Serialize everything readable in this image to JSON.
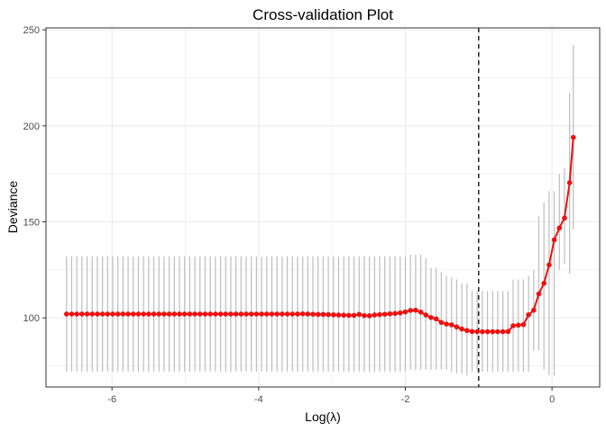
{
  "chart_data": {
    "type": "line",
    "title": "Cross-validation Plot",
    "xlabel": "Log(λ)",
    "ylabel": "Deviance",
    "xlim": [
      -6.9,
      0.65
    ],
    "ylim": [
      64,
      251
    ],
    "x_ticks": [
      -6,
      -4,
      -2,
      0
    ],
    "y_ticks": [
      100,
      150,
      200,
      250
    ],
    "grid": true,
    "legend": "none",
    "colors": {
      "line": "#ee1111",
      "point": "#ee1111",
      "errorbar": "#bdbdbd",
      "vline": "#000000",
      "grid": "#ebebeb",
      "panel_border": "#333333"
    },
    "vline_x": -1.0,
    "series": [
      {
        "x": [
          -6.62,
          -6.55,
          -6.48,
          -6.41,
          -6.34,
          -6.27,
          -6.2,
          -6.13,
          -6.06,
          -5.99,
          -5.92,
          -5.85,
          -5.78,
          -5.71,
          -5.64,
          -5.57,
          -5.5,
          -5.43,
          -5.36,
          -5.29,
          -5.22,
          -5.15,
          -5.08,
          -5.01,
          -4.94,
          -4.87,
          -4.8,
          -4.73,
          -4.66,
          -4.59,
          -4.52,
          -4.45,
          -4.38,
          -4.31,
          -4.24,
          -4.17,
          -4.1,
          -4.03,
          -3.96,
          -3.89,
          -3.82,
          -3.75,
          -3.68,
          -3.61,
          -3.54,
          -3.47,
          -3.4,
          -3.33,
          -3.26,
          -3.19,
          -3.12,
          -3.05,
          -2.98,
          -2.91,
          -2.84,
          -2.77,
          -2.7,
          -2.63,
          -2.56,
          -2.49,
          -2.42,
          -2.35,
          -2.28,
          -2.21,
          -2.14,
          -2.07,
          -2.0,
          -1.93,
          -1.86,
          -1.79,
          -1.72,
          -1.65,
          -1.58,
          -1.51,
          -1.44,
          -1.37,
          -1.3,
          -1.23,
          -1.16,
          -1.09,
          -1.02,
          -0.95,
          -0.88,
          -0.81,
          -0.74,
          -0.67,
          -0.6,
          -0.53,
          -0.46,
          -0.39,
          -0.32,
          -0.25,
          -0.18,
          -0.11,
          -0.04,
          0.03,
          0.1,
          0.17,
          0.24,
          0.29
        ],
        "y": [
          102,
          102,
          102,
          102,
          102,
          102,
          102,
          102,
          102,
          102,
          102,
          102,
          102,
          102,
          102,
          102,
          102,
          102,
          102,
          102,
          102,
          102,
          102,
          102,
          102,
          102,
          102,
          102,
          102,
          102,
          102,
          102,
          102,
          102,
          102,
          102,
          102,
          102,
          102,
          102,
          102,
          102,
          102,
          102,
          102,
          102,
          102.1,
          102,
          101.9,
          101.8,
          101.8,
          101.7,
          101.6,
          101.5,
          101.4,
          101.3,
          101.3,
          101.8,
          101.2,
          101.1,
          101.5,
          101.7,
          101.9,
          102.1,
          102.3,
          102.6,
          103.1,
          103.9,
          104.0,
          103.0,
          101.5,
          100.2,
          99.5,
          97.6,
          96.8,
          96.4,
          95.3,
          94.2,
          93.4,
          92.9,
          92.8,
          92.8,
          92.8,
          92.8,
          92.8,
          92.8,
          92.9,
          95.9,
          96.2,
          96.5,
          101.6,
          104.0,
          112.5,
          118.0,
          127.6,
          140.6,
          146.8,
          152.0,
          170.4,
          194.0
        ],
        "ci_lower": [
          72,
          72,
          72,
          72,
          72,
          72,
          72,
          72,
          72,
          72,
          72,
          72,
          72,
          72,
          72,
          72,
          72,
          72,
          72,
          72,
          72,
          72,
          72,
          72,
          72,
          72,
          72,
          72,
          72,
          72,
          72,
          72,
          72,
          72,
          72,
          72,
          72,
          72,
          72,
          72,
          72,
          72,
          72,
          72,
          72,
          72,
          72,
          72,
          72,
          72,
          72,
          72,
          72,
          72,
          72,
          72,
          72,
          72,
          72,
          72,
          72,
          72,
          72,
          72,
          72,
          72,
          72,
          73,
          73,
          73,
          73,
          73,
          73,
          73,
          73,
          72,
          71,
          71,
          70,
          72,
          72,
          72,
          72,
          72,
          72,
          72,
          72,
          72,
          72,
          72,
          72,
          83,
          83,
          73,
          70,
          70,
          125,
          128,
          123,
          146
        ],
        "ci_upper": [
          132,
          132,
          132,
          132,
          132,
          132,
          132,
          132,
          132,
          132,
          132,
          132,
          132,
          132,
          132,
          132,
          132,
          132,
          132,
          132,
          132,
          132,
          132,
          132,
          132,
          132,
          132,
          132,
          132,
          132,
          132,
          132,
          132,
          132,
          132,
          132,
          132,
          132,
          132,
          132,
          132,
          132,
          132,
          132,
          132,
          132,
          132,
          132,
          132,
          132,
          132,
          132,
          132,
          132,
          132,
          132,
          132,
          132,
          132,
          132,
          132,
          132,
          132,
          132,
          132,
          132,
          132,
          133,
          133,
          133,
          131,
          126,
          126,
          124,
          122,
          121,
          120,
          118,
          118,
          114,
          114,
          114,
          114,
          114,
          114,
          114,
          114,
          120,
          120,
          120,
          122,
          125,
          153,
          160,
          166,
          166,
          175,
          178,
          217,
          242
        ]
      }
    ]
  }
}
